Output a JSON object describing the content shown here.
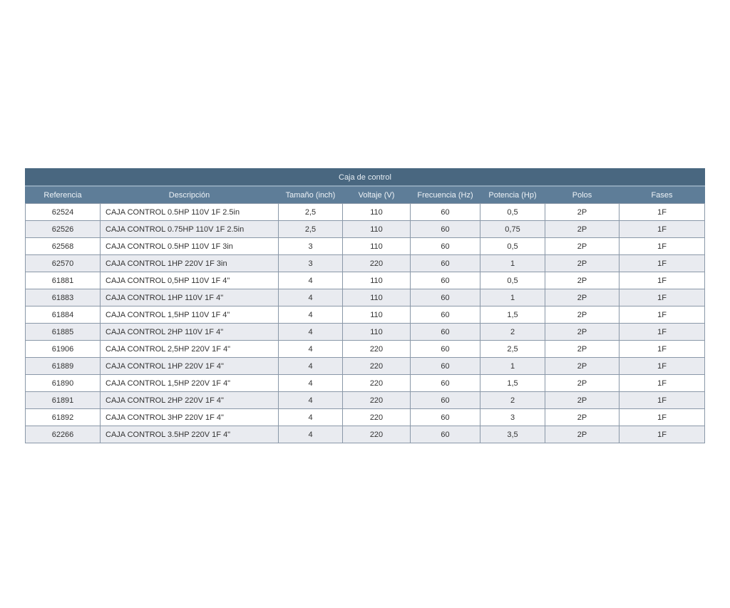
{
  "table": {
    "title": "Caja de control",
    "headers": [
      "Referencia",
      "Descripción",
      "Tamaño (inch)",
      "Voltaje (V)",
      "Frecuencia (Hz)",
      "Potencia (Hp)",
      "Polos",
      "Fases"
    ],
    "rows": [
      [
        "62524",
        "CAJA CONTROL 0.5HP 110V 1F 2.5in",
        "2,5",
        "110",
        "60",
        "0,5",
        "2P",
        "1F"
      ],
      [
        "62526",
        "CAJA CONTROL 0.75HP 110V 1F 2.5in",
        "2,5",
        "110",
        "60",
        "0,75",
        "2P",
        "1F"
      ],
      [
        "62568",
        "CAJA CONTROL 0.5HP 110V 1F 3in",
        "3",
        "110",
        "60",
        "0,5",
        "2P",
        "1F"
      ],
      [
        "62570",
        "CAJA CONTROL 1HP 220V 1F 3in",
        "3",
        "220",
        "60",
        "1",
        "2P",
        "1F"
      ],
      [
        "61881",
        "CAJA CONTROL 0,5HP 110V 1F 4\"",
        "4",
        "110",
        "60",
        "0,5",
        "2P",
        "1F"
      ],
      [
        "61883",
        "CAJA CONTROL 1HP 110V 1F 4\"",
        "4",
        "110",
        "60",
        "1",
        "2P",
        "1F"
      ],
      [
        "61884",
        "CAJA CONTROL 1,5HP 110V 1F 4\"",
        "4",
        "110",
        "60",
        "1,5",
        "2P",
        "1F"
      ],
      [
        "61885",
        "CAJA CONTROL 2HP 110V 1F 4\"",
        "4",
        "110",
        "60",
        "2",
        "2P",
        "1F"
      ],
      [
        "61906",
        "CAJA CONTROL 2,5HP 220V 1F 4\"",
        "4",
        "220",
        "60",
        "2,5",
        "2P",
        "1F"
      ],
      [
        "61889",
        "CAJA CONTROL 1HP 220V 1F 4\"",
        "4",
        "220",
        "60",
        "1",
        "2P",
        "1F"
      ],
      [
        "61890",
        "CAJA CONTROL 1,5HP 220V 1F 4\"",
        "4",
        "220",
        "60",
        "1,5",
        "2P",
        "1F"
      ],
      [
        "61891",
        "CAJA CONTROL 2HP 220V 1F 4\"",
        "4",
        "220",
        "60",
        "2",
        "2P",
        "1F"
      ],
      [
        "61892",
        "CAJA CONTROL 3HP 220V 1F 4\"",
        "4",
        "220",
        "60",
        "3",
        "2P",
        "1F"
      ],
      [
        "62266",
        "CAJA CONTROL  3.5HP 220V 1F 4\"",
        "4",
        "220",
        "60",
        "3,5",
        "2P",
        "1F"
      ]
    ]
  }
}
